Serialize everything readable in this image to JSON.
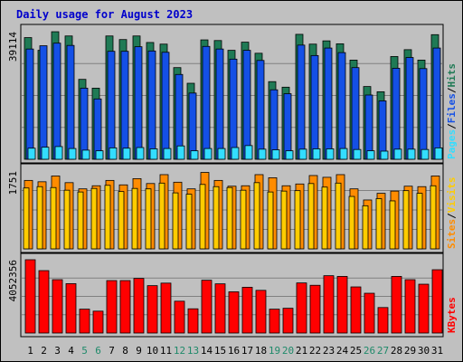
{
  "title": "Daily usage for August 2023",
  "colors": {
    "hits": "#1f7a55",
    "files": "#1450e6",
    "pages": "#33ddff",
    "visits": "#ffcc00",
    "sites": "#ff8c00",
    "kbytes": "#ff0000",
    "weekend_tick": "#1f8a6a",
    "weekday_tick": "#000000",
    "title": "#0000cc"
  },
  "panels": {
    "top": {
      "max_label": "39114",
      "legend": [
        "Pages",
        "/",
        "Files",
        "/",
        "Hits"
      ]
    },
    "middle": {
      "max_label": "1751",
      "legend": [
        "Sites",
        "/",
        "Visits"
      ]
    },
    "bottom": {
      "max_label": "4052356",
      "legend": [
        "KBytes"
      ]
    }
  },
  "chart_data": [
    {
      "type": "bar",
      "panel": "top",
      "categories": [
        "1",
        "2",
        "3",
        "4",
        "5",
        "6",
        "7",
        "8",
        "9",
        "10",
        "11",
        "12",
        "13",
        "14",
        "15",
        "16",
        "17",
        "18",
        "19",
        "20",
        "21",
        "22",
        "23",
        "24",
        "25",
        "26",
        "27",
        "28",
        "29",
        "30",
        "31"
      ],
      "weekend_days": [
        "5",
        "6",
        "12",
        "13",
        "19",
        "20",
        "26",
        "27"
      ],
      "ylim": [
        0,
        39114
      ],
      "series": [
        {
          "name": "Hits",
          "values": [
            37300,
            33400,
            39100,
            37800,
            24500,
            21800,
            37800,
            36700,
            37800,
            35800,
            35300,
            28100,
            23300,
            36600,
            36400,
            33400,
            35900,
            32500,
            23800,
            22100,
            38300,
            35300,
            36300,
            35400,
            30400,
            22300,
            20700,
            31500,
            33600,
            30400,
            38200
          ]
        },
        {
          "name": "Files",
          "values": [
            33800,
            34800,
            35600,
            34900,
            21800,
            18500,
            33100,
            33100,
            34500,
            33200,
            32800,
            26000,
            20300,
            34600,
            33800,
            30700,
            33400,
            30300,
            21300,
            20100,
            35000,
            31800,
            34100,
            32700,
            28100,
            19700,
            17900,
            27900,
            31200,
            27800,
            34100
          ]
        },
        {
          "name": "Pages",
          "values": [
            3400,
            3700,
            3900,
            3300,
            2800,
            2600,
            3500,
            3400,
            3600,
            3200,
            3300,
            4100,
            2600,
            3300,
            3300,
            3600,
            4200,
            3100,
            2900,
            2600,
            3100,
            3200,
            3200,
            3300,
            3000,
            2600,
            2500,
            3100,
            3100,
            3000,
            3500
          ]
        }
      ]
    },
    {
      "type": "bar",
      "panel": "middle",
      "categories": [
        "1",
        "2",
        "3",
        "4",
        "5",
        "6",
        "7",
        "8",
        "9",
        "10",
        "11",
        "12",
        "13",
        "14",
        "15",
        "16",
        "17",
        "18",
        "19",
        "20",
        "21",
        "22",
        "23",
        "24",
        "25",
        "26",
        "27",
        "28",
        "29",
        "30",
        "31"
      ],
      "ylim": [
        0,
        1751
      ],
      "series": [
        {
          "name": "Sites",
          "values": [
            1540,
            1510,
            1640,
            1490,
            1350,
            1420,
            1540,
            1440,
            1580,
            1470,
            1670,
            1500,
            1350,
            1720,
            1540,
            1410,
            1420,
            1670,
            1600,
            1420,
            1460,
            1650,
            1610,
            1670,
            1350,
            1100,
            1250,
            1300,
            1410,
            1400,
            1640
          ]
        },
        {
          "name": "Visits",
          "values": [
            1370,
            1400,
            1380,
            1320,
            1280,
            1360,
            1430,
            1290,
            1360,
            1350,
            1480,
            1260,
            1230,
            1450,
            1400,
            1380,
            1320,
            1490,
            1280,
            1300,
            1310,
            1470,
            1390,
            1480,
            1180,
            970,
            1130,
            1080,
            1310,
            1250,
            1420
          ]
        }
      ]
    },
    {
      "type": "bar",
      "panel": "bottom",
      "categories": [
        "1",
        "2",
        "3",
        "4",
        "5",
        "6",
        "7",
        "8",
        "9",
        "10",
        "11",
        "12",
        "13",
        "14",
        "15",
        "16",
        "17",
        "18",
        "19",
        "20",
        "21",
        "22",
        "23",
        "24",
        "25",
        "26",
        "27",
        "28",
        "29",
        "30",
        "31"
      ],
      "ylim": [
        0,
        4052356
      ],
      "series": [
        {
          "name": "KBytes",
          "values": [
            4052356,
            3450000,
            2950000,
            2730000,
            1320000,
            1210000,
            2900000,
            2900000,
            3020000,
            2620000,
            2760000,
            1760000,
            1340000,
            2920000,
            2720000,
            2280000,
            2530000,
            2360000,
            1320000,
            1370000,
            2770000,
            2640000,
            3170000,
            3130000,
            2550000,
            2200000,
            1410000,
            3130000,
            2950000,
            2700000,
            3500000
          ]
        }
      ]
    }
  ]
}
